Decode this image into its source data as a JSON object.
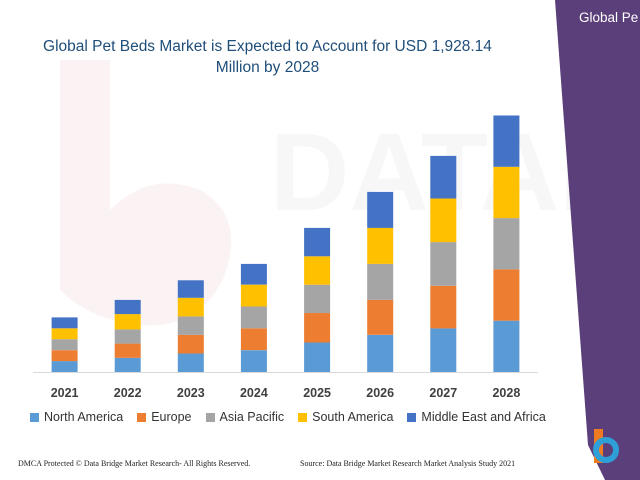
{
  "banner": {
    "text": "Global Pe",
    "color": "#5b3f7a"
  },
  "footer": {
    "left": "DMCA Protected © Data Bridge Market Research- All Rights Reserved.",
    "right": "Source: Data Bridge Market Research Market Analysis Study 2021"
  },
  "chart_data": {
    "type": "bar",
    "stacked": true,
    "title": "Global Pet Beds Market is Expected to Account for USD 1,928.14 Million by 2028",
    "categories": [
      "2021",
      "2022",
      "2023",
      "2024",
      "2025",
      "2026",
      "2027",
      "2028"
    ],
    "series": [
      {
        "name": "North America",
        "color": "#5b9bd5",
        "values": [
          10,
          13,
          17,
          20,
          27,
          34,
          40,
          47
        ]
      },
      {
        "name": "Europe",
        "color": "#ed7d31",
        "values": [
          10,
          13,
          17,
          20,
          27,
          32,
          39,
          47
        ]
      },
      {
        "name": "Asia Pacific",
        "color": "#a5a5a5",
        "values": [
          10,
          13,
          17,
          20,
          26,
          33,
          40,
          47
        ]
      },
      {
        "name": "South America",
        "color": "#ffc000",
        "values": [
          10,
          14,
          17,
          20,
          26,
          33,
          40,
          47
        ]
      },
      {
        "name": "Middle East and Africa",
        "color": "#4472c4",
        "values": [
          10,
          13,
          16,
          19,
          26,
          33,
          39,
          47
        ]
      }
    ],
    "xlabel": "",
    "ylabel": "",
    "ylim": [
      0,
      240
    ],
    "grid": false,
    "legend": "bottom"
  }
}
